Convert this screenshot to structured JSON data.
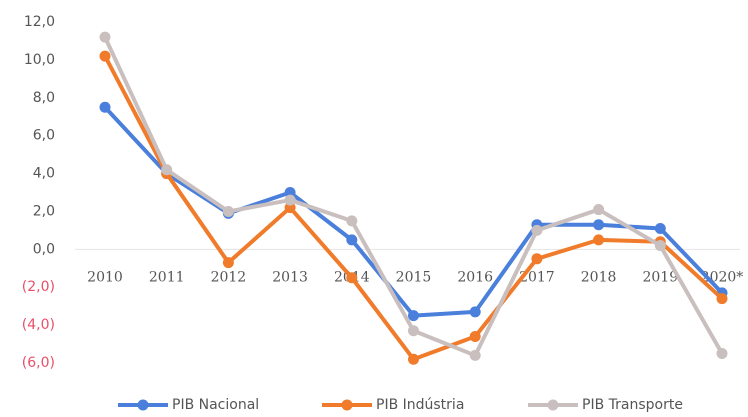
{
  "chart_data": {
    "type": "line",
    "categories": [
      "2010",
      "2011",
      "2012",
      "2013",
      "2014",
      "2015",
      "2016",
      "2017",
      "2018",
      "2019",
      "2020*"
    ],
    "series": [
      {
        "name": "PIB Nacional",
        "color": "#4a7fdc",
        "values": [
          7.5,
          4.0,
          1.9,
          3.0,
          0.5,
          -3.5,
          -3.3,
          1.3,
          1.3,
          1.1,
          -2.3
        ]
      },
      {
        "name": "PIB Indústria",
        "color": "#f07b2a",
        "values": [
          10.2,
          4.0,
          -0.7,
          2.2,
          -1.5,
          -5.8,
          -4.6,
          -0.5,
          0.5,
          0.4,
          -2.6
        ]
      },
      {
        "name": "PIB Transporte",
        "color": "#c9bfbf",
        "values": [
          11.2,
          4.2,
          2.0,
          2.6,
          1.5,
          -4.3,
          -5.6,
          1.0,
          2.1,
          0.2,
          -5.5
        ]
      }
    ],
    "ylim": [
      -6,
      12
    ],
    "yticks": [
      {
        "value": -6,
        "label": "(6,0)"
      },
      {
        "value": -4,
        "label": "(4,0)"
      },
      {
        "value": -2,
        "label": "(2,0)"
      },
      {
        "value": 0,
        "label": "0,0"
      },
      {
        "value": 2,
        "label": "2,0"
      },
      {
        "value": 4,
        "label": "4,0"
      },
      {
        "value": 6,
        "label": "6,0"
      },
      {
        "value": 8,
        "label": "8,0"
      },
      {
        "value": 10,
        "label": "10,0"
      },
      {
        "value": 12,
        "label": "12,0"
      }
    ],
    "negative_tick_color": "#e8506a",
    "legend": "bottom"
  }
}
